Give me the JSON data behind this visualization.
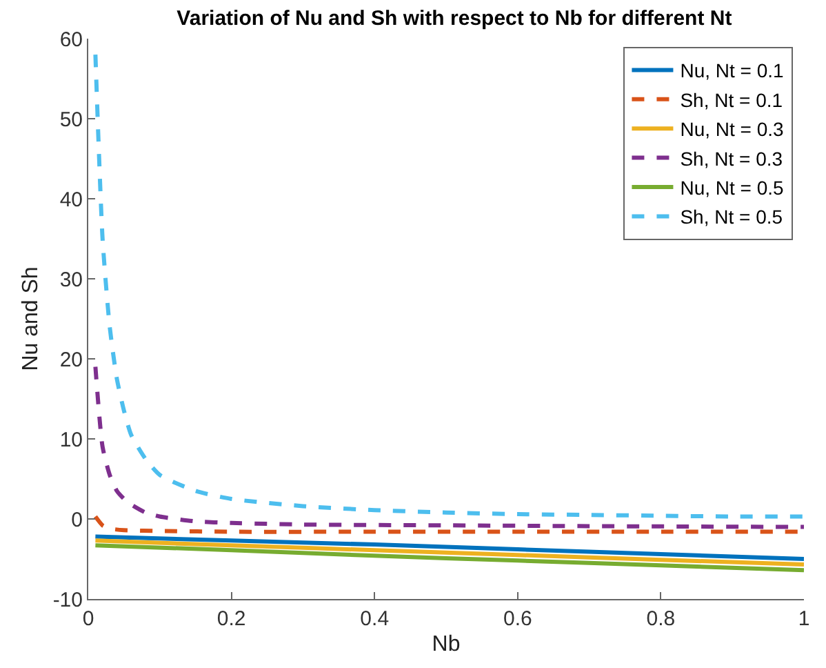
{
  "chart_data": {
    "type": "line",
    "title": "Variation of Nu and Sh with respect to Nb for different Nt",
    "xlabel": "Nb",
    "ylabel": "Nu and Sh",
    "xlim": [
      0,
      1
    ],
    "xticks": [
      0,
      0.2,
      0.4,
      0.6,
      0.8,
      1
    ],
    "ylim": [
      -10,
      60
    ],
    "yticks": [
      -10,
      0,
      10,
      20,
      30,
      40,
      50,
      60
    ],
    "legend": "top right",
    "series": [
      {
        "name": "Nu, Nt = 0.1",
        "color": "#0072bd",
        "line_style": "solid",
        "x": [
          0.01,
          0.2,
          0.4,
          0.6,
          0.8,
          1.0
        ],
        "values": [
          -2.2,
          -2.7,
          -3.2,
          -3.8,
          -4.4,
          -5.0
        ]
      },
      {
        "name": "Sh, Nt = 0.1",
        "color": "#d95319",
        "line_style": "dashed",
        "x": [
          0.01,
          0.02,
          0.03,
          0.05,
          0.1,
          0.2,
          0.4,
          0.6,
          0.8,
          1.0
        ],
        "values": [
          0.3,
          -0.8,
          -1.2,
          -1.4,
          -1.5,
          -1.6,
          -1.6,
          -1.6,
          -1.6,
          -1.6
        ]
      },
      {
        "name": "Nu, Nt = 0.3",
        "color": "#edb120",
        "line_style": "solid",
        "x": [
          0.01,
          0.2,
          0.4,
          0.6,
          0.8,
          1.0
        ],
        "values": [
          -2.7,
          -3.3,
          -3.9,
          -4.5,
          -5.1,
          -5.7
        ]
      },
      {
        "name": "Sh, Nt = 0.3",
        "color": "#7e2f8e",
        "line_style": "dashed",
        "x": [
          0.01,
          0.02,
          0.03,
          0.04,
          0.05,
          0.06,
          0.08,
          0.1,
          0.15,
          0.2,
          0.3,
          0.5,
          0.7,
          1.0
        ],
        "values": [
          19,
          9,
          5.5,
          3.5,
          2.5,
          1.8,
          0.8,
          0.3,
          -0.3,
          -0.5,
          -0.7,
          -0.8,
          -0.9,
          -1.0
        ]
      },
      {
        "name": "Nu, Nt = 0.5",
        "color": "#77ac30",
        "line_style": "solid",
        "x": [
          0.01,
          0.2,
          0.4,
          0.6,
          0.8,
          1.0
        ],
        "values": [
          -3.3,
          -3.9,
          -4.6,
          -5.2,
          -5.8,
          -6.4
        ]
      },
      {
        "name": "Sh, Nt = 0.5",
        "color": "#4dbeee",
        "line_style": "dashed",
        "x": [
          0.01,
          0.02,
          0.03,
          0.04,
          0.05,
          0.06,
          0.08,
          0.1,
          0.15,
          0.2,
          0.3,
          0.4,
          0.5,
          0.6,
          0.7,
          0.8,
          0.9,
          1.0
        ],
        "values": [
          58,
          35,
          24,
          17.5,
          13.5,
          10.5,
          7.5,
          5.5,
          3.5,
          2.5,
          1.6,
          1.1,
          0.8,
          0.6,
          0.5,
          0.4,
          0.3,
          0.3
        ]
      }
    ]
  }
}
